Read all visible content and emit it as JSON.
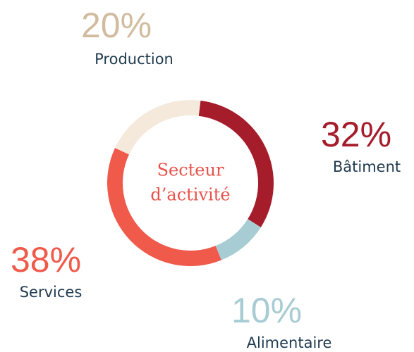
{
  "chart_data": {
    "type": "donut",
    "title": [
      "Secteur",
      "d’activité"
    ],
    "categories": [
      "Bâtiment",
      "Alimentaire",
      "Services",
      "Production"
    ],
    "values": [
      32,
      10,
      38,
      20
    ],
    "value_labels": [
      "32%",
      "10%",
      "38%",
      "20%"
    ],
    "colors": [
      "#a51c2a",
      "#a8ccd3",
      "#ef5a4b",
      "#f5e9dc"
    ],
    "label_colors": [
      "#a51c2a",
      "#a8ccd3",
      "#ef5a4b",
      "#d2bc9f"
    ]
  }
}
